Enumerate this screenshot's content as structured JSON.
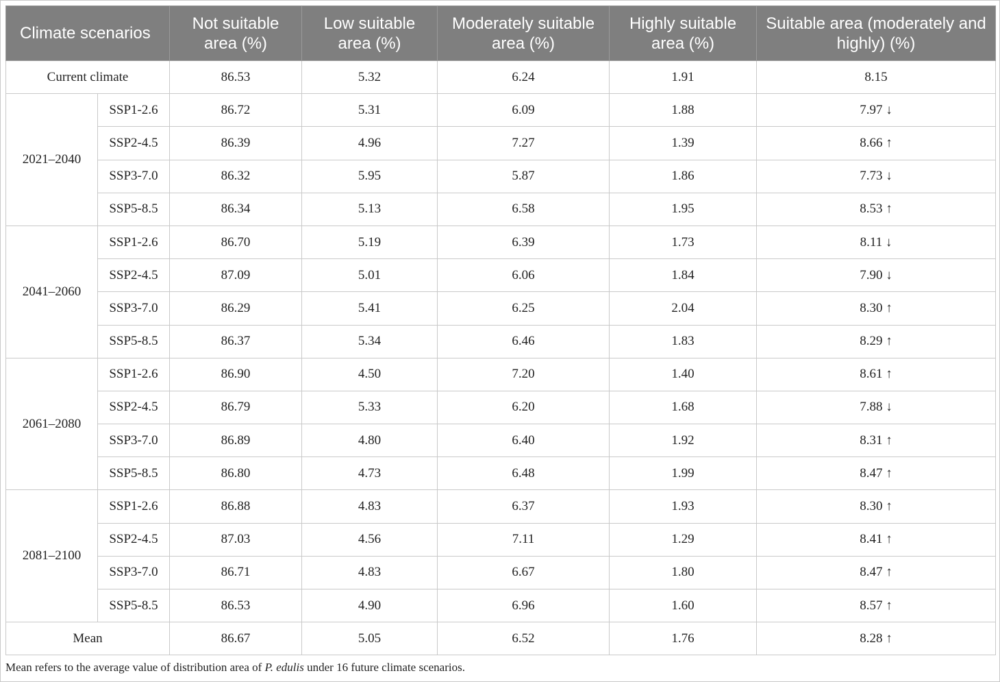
{
  "table": {
    "headers": [
      "Climate scenarios",
      "Not suitable area (%)",
      "Low suitable area (%)",
      "Moderately suitable area (%)",
      "Highly suitable area (%)",
      "Suitable area (moderately and highly) (%)"
    ],
    "current": {
      "label": "Current climate",
      "values": [
        "86.53",
        "5.32",
        "6.24",
        "1.91",
        "8.15"
      ]
    },
    "periods": [
      {
        "period": "2021–2040",
        "rows": [
          {
            "ssp": "SSP1-2.6",
            "values": [
              "86.72",
              "5.31",
              "6.09",
              "1.88",
              "7.97 ↓"
            ]
          },
          {
            "ssp": "SSP2-4.5",
            "values": [
              "86.39",
              "4.96",
              "7.27",
              "1.39",
              "8.66 ↑"
            ]
          },
          {
            "ssp": "SSP3-7.0",
            "values": [
              "86.32",
              "5.95",
              "5.87",
              "1.86",
              "7.73 ↓"
            ]
          },
          {
            "ssp": "SSP5-8.5",
            "values": [
              "86.34",
              "5.13",
              "6.58",
              "1.95",
              "8.53 ↑"
            ]
          }
        ]
      },
      {
        "period": "2041–2060",
        "rows": [
          {
            "ssp": "SSP1-2.6",
            "values": [
              "86.70",
              "5.19",
              "6.39",
              "1.73",
              "8.11 ↓"
            ]
          },
          {
            "ssp": "SSP2-4.5",
            "values": [
              "87.09",
              "5.01",
              "6.06",
              "1.84",
              "7.90 ↓"
            ]
          },
          {
            "ssp": "SSP3-7.0",
            "values": [
              "86.29",
              "5.41",
              "6.25",
              "2.04",
              "8.30 ↑"
            ]
          },
          {
            "ssp": "SSP5-8.5",
            "values": [
              "86.37",
              "5.34",
              "6.46",
              "1.83",
              "8.29 ↑"
            ]
          }
        ]
      },
      {
        "period": "2061–2080",
        "rows": [
          {
            "ssp": "SSP1-2.6",
            "values": [
              "86.90",
              "4.50",
              "7.20",
              "1.40",
              "8.61 ↑"
            ]
          },
          {
            "ssp": "SSP2-4.5",
            "values": [
              "86.79",
              "5.33",
              "6.20",
              "1.68",
              "7.88 ↓"
            ]
          },
          {
            "ssp": "SSP3-7.0",
            "values": [
              "86.89",
              "4.80",
              "6.40",
              "1.92",
              "8.31 ↑"
            ]
          },
          {
            "ssp": "SSP5-8.5",
            "values": [
              "86.80",
              "4.73",
              "6.48",
              "1.99",
              "8.47 ↑"
            ]
          }
        ]
      },
      {
        "period": "2081–2100",
        "rows": [
          {
            "ssp": "SSP1-2.6",
            "values": [
              "86.88",
              "4.83",
              "6.37",
              "1.93",
              "8.30 ↑"
            ]
          },
          {
            "ssp": "SSP2-4.5",
            "values": [
              "87.03",
              "4.56",
              "7.11",
              "1.29",
              "8.41 ↑"
            ]
          },
          {
            "ssp": "SSP3-7.0",
            "values": [
              "86.71",
              "4.83",
              "6.67",
              "1.80",
              "8.47 ↑"
            ]
          },
          {
            "ssp": "SSP5-8.5",
            "values": [
              "86.53",
              "4.90",
              "6.96",
              "1.60",
              "8.57 ↑"
            ]
          }
        ]
      }
    ],
    "mean": {
      "label": "Mean",
      "values": [
        "86.67",
        "5.05",
        "6.52",
        "1.76",
        "8.28 ↑"
      ]
    }
  },
  "footnote": {
    "before": "Mean refers to the average value of distribution area of ",
    "species": "P. edulis",
    "after": " under 16 future climate scenarios."
  }
}
